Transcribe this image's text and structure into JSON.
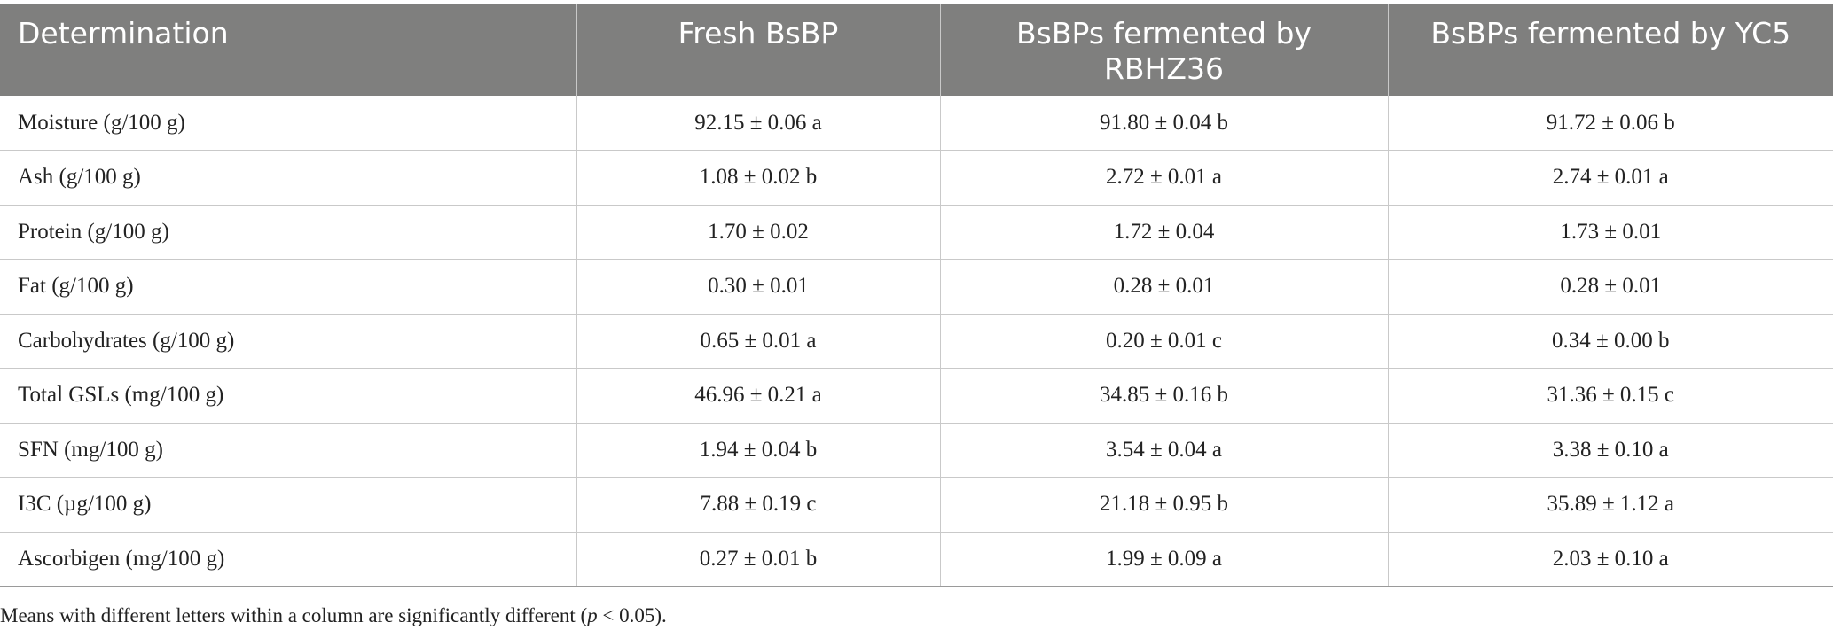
{
  "table": {
    "headers": [
      "Determination",
      "Fresh BsBP",
      "BsBPs fermented by RBHZ36",
      "BsBPs fermented by YC5"
    ],
    "rows": [
      {
        "label": "Moisture (g/100 g)",
        "fresh": "92.15 ± 0.06 a",
        "rbhz36": "91.80 ± 0.04 b",
        "yc5": "91.72 ± 0.06 b"
      },
      {
        "label": "Ash (g/100 g)",
        "fresh": "1.08 ± 0.02 b",
        "rbhz36": "2.72 ± 0.01 a",
        "yc5": "2.74 ± 0.01 a"
      },
      {
        "label": "Protein (g/100 g)",
        "fresh": "1.70 ± 0.02",
        "rbhz36": "1.72 ± 0.04",
        "yc5": "1.73 ± 0.01"
      },
      {
        "label": "Fat (g/100 g)",
        "fresh": "0.30 ± 0.01",
        "rbhz36": "0.28 ± 0.01",
        "yc5": "0.28 ± 0.01"
      },
      {
        "label": "Carbohydrates (g/100 g)",
        "fresh": "0.65 ± 0.01 a",
        "rbhz36": "0.20 ± 0.01 c",
        "yc5": "0.34 ± 0.00 b"
      },
      {
        "label": "Total GSLs (mg/100 g)",
        "fresh": "46.96 ± 0.21 a",
        "rbhz36": "34.85 ± 0.16 b",
        "yc5": "31.36 ± 0.15 c"
      },
      {
        "label": "SFN (mg/100 g)",
        "fresh": "1.94 ± 0.04 b",
        "rbhz36": "3.54 ± 0.04 a",
        "yc5": "3.38 ± 0.10 a"
      },
      {
        "label": "I3C (µg/100 g)",
        "fresh": "7.88 ± 0.19 c",
        "rbhz36": "21.18 ± 0.95 b",
        "yc5": "35.89 ± 1.12 a"
      },
      {
        "label": "Ascorbigen (mg/100 g)",
        "fresh": "0.27 ± 0.01 b",
        "rbhz36": "1.99 ± 0.09 a",
        "yc5": "2.03 ± 0.10 a"
      }
    ]
  },
  "footnote": {
    "before": "Means with different letters within a column are significantly different (",
    "italic": "p",
    "after": " < 0.05)."
  },
  "colors": {
    "header_bg": "#7f7f7e",
    "header_text": "#ffffff",
    "grid_line": "#c9c9c9"
  }
}
